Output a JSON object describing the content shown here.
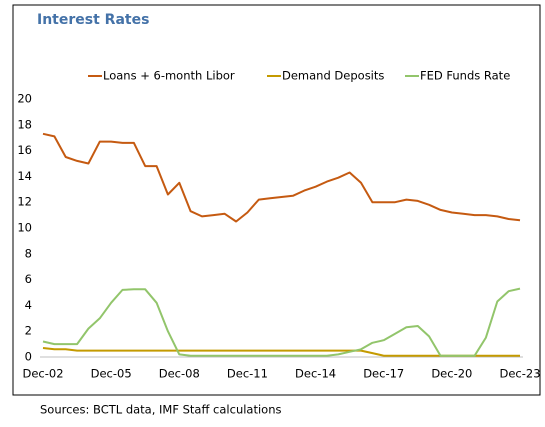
{
  "chart_data": {
    "type": "line",
    "title": "Interest Rates",
    "source": "Sources: BCTL data, IMF Staff calculations",
    "categories": [
      "Dec-02",
      null,
      null,
      null,
      null,
      null,
      "Dec-05",
      null,
      null,
      null,
      null,
      null,
      "Dec-08",
      null,
      null,
      null,
      null,
      null,
      "Dec-11",
      null,
      null,
      null,
      null,
      null,
      "Dec-14",
      null,
      null,
      null,
      null,
      null,
      "Dec-17",
      null,
      null,
      null,
      null,
      null,
      "Dec-20",
      null,
      null,
      null,
      null,
      null,
      "Dec-23"
    ],
    "series": [
      {
        "name": "Loans + 6-month Libor",
        "color": "#c55a11",
        "values": [
          17.3,
          17.1,
          15.5,
          15.2,
          15.0,
          16.7,
          16.7,
          16.6,
          16.6,
          14.8,
          14.8,
          12.6,
          13.5,
          11.3,
          10.9,
          11.0,
          11.1,
          10.5,
          11.2,
          12.2,
          12.3,
          12.4,
          12.5,
          12.9,
          13.2,
          13.6,
          13.9,
          14.3,
          13.5,
          12.0,
          12.0,
          12.0,
          12.2,
          12.1,
          11.8,
          11.4,
          11.2,
          11.1,
          11.0,
          11.0,
          10.9,
          10.7,
          10.6
        ]
      },
      {
        "name": "Demand Deposits",
        "color": "#c49a00",
        "values": [
          0.7,
          0.6,
          0.6,
          0.5,
          0.5,
          0.5,
          0.5,
          0.5,
          0.5,
          0.5,
          0.5,
          0.5,
          0.5,
          0.5,
          0.5,
          0.5,
          0.5,
          0.5,
          0.5,
          0.5,
          0.5,
          0.5,
          0.5,
          0.5,
          0.5,
          0.5,
          0.5,
          0.5,
          0.5,
          0.3,
          0.1,
          0.1,
          0.1,
          0.1,
          0.1,
          0.1,
          0.1,
          0.1,
          0.1,
          0.1,
          0.1,
          0.1,
          0.1
        ]
      },
      {
        "name": "FED Funds Rate",
        "color": "#92c56b",
        "values": [
          1.2,
          1.0,
          1.0,
          1.0,
          2.2,
          3.0,
          4.2,
          5.2,
          5.25,
          5.25,
          4.2,
          2.0,
          0.2,
          0.1,
          0.1,
          0.1,
          0.1,
          0.1,
          0.1,
          0.1,
          0.1,
          0.1,
          0.1,
          0.1,
          0.1,
          0.1,
          0.2,
          0.4,
          0.6,
          1.1,
          1.3,
          1.8,
          2.3,
          2.4,
          1.6,
          0.1,
          0.1,
          0.1,
          0.1,
          1.5,
          4.3,
          5.1,
          5.3
        ]
      }
    ],
    "ylim": [
      0,
      20
    ],
    "yticks": [
      0,
      2,
      4,
      6,
      8,
      10,
      12,
      14,
      16,
      18,
      20
    ],
    "grid": false
  }
}
